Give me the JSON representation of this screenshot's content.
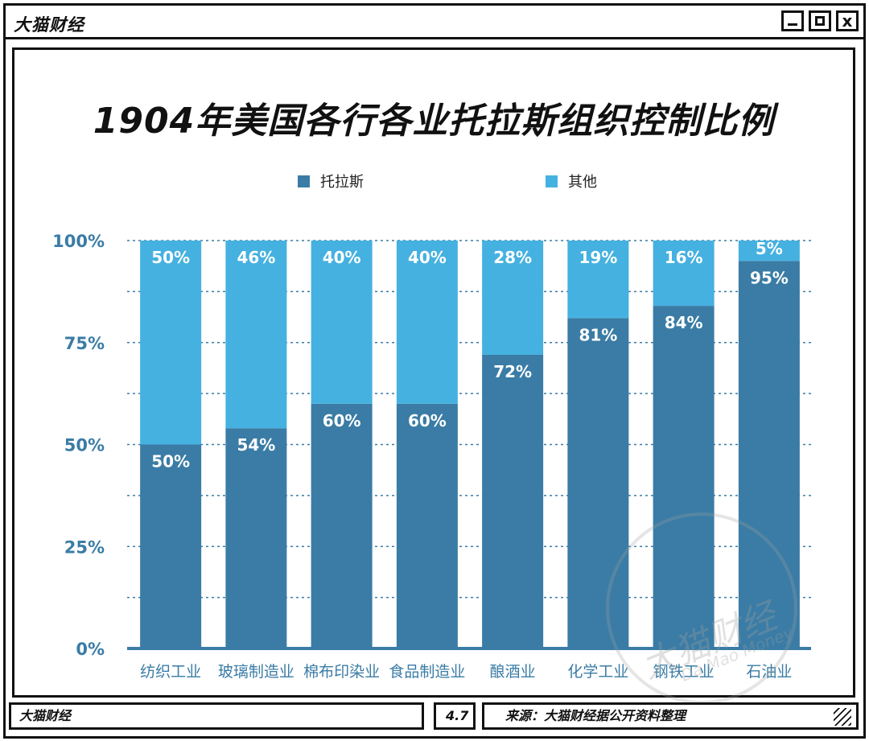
{
  "window": {
    "app_title": "大猫财经",
    "buttons": {
      "minimize": "minimize",
      "maximize": "maximize",
      "close": "x"
    }
  },
  "status": {
    "brand": "大猫财经",
    "version": "4.7",
    "source": "来源：大猫财经据公开资料整理"
  },
  "watermark": {
    "text": "大猫财经",
    "sub": "Da Mao Money"
  },
  "colors": {
    "trust": "#3a7ca5",
    "other": "#45b1e0",
    "axis_text": "#3a7ca5"
  },
  "chart_data": {
    "type": "bar",
    "stacked": true,
    "title": "1904年美国各行各业托拉斯组织控制比例",
    "categories": [
      "纺织工业",
      "玻璃制造业",
      "棉布印染业",
      "食品制造业",
      "酿酒业",
      "化学工业",
      "钢铁工业",
      "石油业"
    ],
    "series": [
      {
        "name": "托拉斯",
        "values": [
          50,
          54,
          60,
          60,
          72,
          81,
          84,
          95
        ],
        "labels": [
          "50%",
          "54%",
          "60%",
          "60%",
          "72%",
          "81%",
          "84%",
          "95%"
        ]
      },
      {
        "name": "其他",
        "values": [
          50,
          46,
          40,
          40,
          28,
          19,
          16,
          5
        ],
        "labels": [
          "50%",
          "46%",
          "40%",
          "40%",
          "28%",
          "19%",
          "16%",
          "5%"
        ]
      }
    ],
    "yticks": [
      "0%",
      "25%",
      "50%",
      "75%",
      "100%"
    ],
    "ylim": [
      0,
      100
    ],
    "grid": "dashed",
    "legend": "top-center"
  }
}
